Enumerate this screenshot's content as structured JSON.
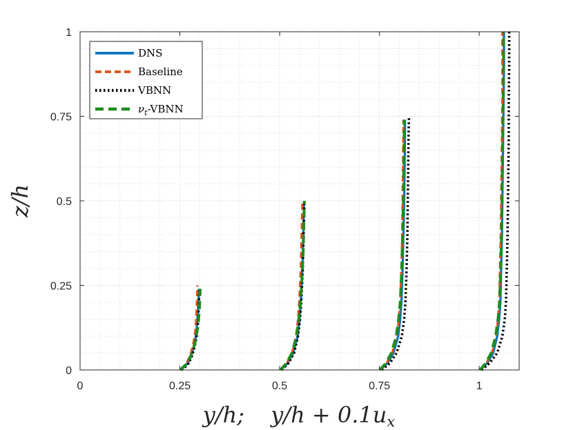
{
  "chart_data": {
    "type": "line",
    "title": "",
    "xlabel": "y/h;    y/h + 0.1u_x",
    "ylabel": "z/h",
    "xlim": [
      0,
      1.1
    ],
    "ylim": [
      0,
      1
    ],
    "grid": "on-minor",
    "legend_position": "top-left",
    "x_ticks": [
      0,
      0.25,
      0.5,
      0.75,
      1
    ],
    "x_tick_labels": [
      "0",
      "0.25",
      "0.5",
      "0.75",
      "1"
    ],
    "y_ticks": [
      0,
      0.25,
      0.5,
      0.75,
      1
    ],
    "y_tick_labels": [
      "0",
      "0.25",
      "0.5",
      "0.75",
      "1"
    ],
    "profile_stations": [
      0.25,
      0.5,
      0.75,
      1.0
    ],
    "profile_heights": [
      0.25,
      0.5,
      0.75,
      1.0
    ],
    "series": [
      {
        "name": "DNS",
        "color": "#0072BD",
        "style": "solid",
        "profiles": [
          {
            "station": 0.25,
            "z": [
              0,
              0.01,
              0.02,
              0.04,
              0.06,
              0.08,
              0.1,
              0.12,
              0.15,
              0.18,
              0.21,
              0.24
            ],
            "x": [
              0.252,
              0.262,
              0.27,
              0.278,
              0.283,
              0.287,
              0.29,
              0.292,
              0.294,
              0.296,
              0.297,
              0.298
            ]
          },
          {
            "station": 0.5,
            "z": [
              0,
              0.02,
              0.05,
              0.1,
              0.15,
              0.2,
              0.25,
              0.3,
              0.35,
              0.4,
              0.45,
              0.5
            ],
            "x": [
              0.503,
              0.52,
              0.534,
              0.545,
              0.55,
              0.553,
              0.555,
              0.557,
              0.558,
              0.559,
              0.56,
              0.561
            ]
          },
          {
            "station": 0.75,
            "z": [
              0,
              0.02,
              0.05,
              0.1,
              0.15,
              0.2,
              0.3,
              0.4,
              0.5,
              0.6,
              0.7,
              0.74
            ],
            "x": [
              0.752,
              0.77,
              0.785,
              0.797,
              0.802,
              0.805,
              0.808,
              0.81,
              0.812,
              0.813,
              0.814,
              0.814
            ]
          },
          {
            "station": 1.0,
            "z": [
              0,
              0.02,
              0.05,
              0.1,
              0.15,
              0.2,
              0.3,
              0.4,
              0.5,
              0.6,
              0.7,
              0.8,
              0.9,
              1.0
            ],
            "x": [
              1.003,
              1.02,
              1.035,
              1.045,
              1.05,
              1.053,
              1.055,
              1.057,
              1.058,
              1.059,
              1.06,
              1.061,
              1.062,
              1.062
            ]
          }
        ]
      },
      {
        "name": "Baseline",
        "color": "#D95319",
        "style": "dashed",
        "profiles": [
          {
            "station": 0.25,
            "z": [
              0,
              0.01,
              0.02,
              0.04,
              0.06,
              0.08,
              0.1,
              0.12,
              0.15,
              0.18,
              0.21,
              0.25
            ],
            "x": [
              0.252,
              0.26,
              0.267,
              0.275,
              0.28,
              0.284,
              0.287,
              0.289,
              0.291,
              0.292,
              0.293,
              0.294
            ]
          },
          {
            "station": 0.5,
            "z": [
              0,
              0.02,
              0.05,
              0.1,
              0.15,
              0.2,
              0.25,
              0.3,
              0.35,
              0.4,
              0.45,
              0.5
            ],
            "x": [
              0.503,
              0.518,
              0.531,
              0.541,
              0.546,
              0.549,
              0.551,
              0.553,
              0.554,
              0.555,
              0.556,
              0.557
            ]
          },
          {
            "station": 0.75,
            "z": [
              0,
              0.02,
              0.05,
              0.1,
              0.15,
              0.2,
              0.3,
              0.4,
              0.5,
              0.6,
              0.7,
              0.74
            ],
            "x": [
              0.752,
              0.768,
              0.782,
              0.793,
              0.799,
              0.802,
              0.805,
              0.807,
              0.808,
              0.809,
              0.81,
              0.81
            ]
          },
          {
            "station": 1.0,
            "z": [
              0,
              0.02,
              0.05,
              0.1,
              0.15,
              0.2,
              0.3,
              0.4,
              0.5,
              0.6,
              0.7,
              0.8,
              0.9,
              1.0
            ],
            "x": [
              1.003,
              1.018,
              1.032,
              1.042,
              1.047,
              1.05,
              1.052,
              1.054,
              1.055,
              1.056,
              1.057,
              1.058,
              1.058,
              1.058
            ]
          }
        ]
      },
      {
        "name": "VBNN",
        "color": "#000000",
        "style": "dotted",
        "profiles": [
          {
            "station": 0.25,
            "z": [
              0,
              0.01,
              0.02,
              0.04,
              0.06,
              0.08,
              0.1,
              0.12,
              0.15,
              0.18,
              0.21,
              0.24
            ],
            "x": [
              0.254,
              0.264,
              0.272,
              0.28,
              0.285,
              0.289,
              0.292,
              0.294,
              0.296,
              0.297,
              0.298,
              0.299
            ]
          },
          {
            "station": 0.5,
            "z": [
              0,
              0.02,
              0.05,
              0.1,
              0.15,
              0.2,
              0.25,
              0.3,
              0.35,
              0.4,
              0.45,
              0.5
            ],
            "x": [
              0.505,
              0.522,
              0.536,
              0.546,
              0.551,
              0.554,
              0.556,
              0.558,
              0.559,
              0.56,
              0.561,
              0.562
            ]
          },
          {
            "station": 0.75,
            "z": [
              0,
              0.02,
              0.05,
              0.1,
              0.15,
              0.2,
              0.3,
              0.4,
              0.5,
              0.6,
              0.7,
              0.75
            ],
            "x": [
              0.756,
              0.776,
              0.793,
              0.806,
              0.812,
              0.815,
              0.818,
              0.82,
              0.821,
              0.822,
              0.823,
              0.824
            ]
          },
          {
            "station": 1.0,
            "z": [
              0,
              0.02,
              0.05,
              0.1,
              0.15,
              0.2,
              0.3,
              0.4,
              0.5,
              0.6,
              0.7,
              0.8,
              0.9,
              1.0
            ],
            "x": [
              1.006,
              1.026,
              1.045,
              1.058,
              1.064,
              1.067,
              1.069,
              1.071,
              1.072,
              1.073,
              1.074,
              1.074,
              1.075,
              1.075
            ]
          }
        ]
      },
      {
        "name": "ν_t-VBNN",
        "color": "#1E8C1E",
        "style": "dashed",
        "profiles": [
          {
            "station": 0.25,
            "z": [
              0,
              0.01,
              0.02,
              0.04,
              0.06,
              0.08,
              0.1,
              0.12,
              0.15,
              0.18,
              0.21,
              0.24
            ],
            "x": [
              0.251,
              0.26,
              0.268,
              0.277,
              0.283,
              0.288,
              0.291,
              0.294,
              0.297,
              0.299,
              0.3,
              0.301
            ]
          },
          {
            "station": 0.5,
            "z": [
              0,
              0.02,
              0.05,
              0.1,
              0.15,
              0.2,
              0.25,
              0.3,
              0.35,
              0.4,
              0.45,
              0.5
            ],
            "x": [
              0.502,
              0.517,
              0.531,
              0.542,
              0.548,
              0.552,
              0.555,
              0.557,
              0.559,
              0.56,
              0.561,
              0.562
            ]
          },
          {
            "station": 0.75,
            "z": [
              0,
              0.02,
              0.05,
              0.1,
              0.15,
              0.2,
              0.3,
              0.4,
              0.5,
              0.6,
              0.7,
              0.74
            ],
            "x": [
              0.751,
              0.766,
              0.78,
              0.792,
              0.798,
              0.802,
              0.806,
              0.808,
              0.81,
              0.811,
              0.812,
              0.812
            ]
          },
          {
            "station": 1.0,
            "z": [
              0,
              0.02,
              0.05,
              0.1,
              0.15,
              0.2,
              0.3,
              0.4,
              0.5,
              0.6,
              0.7,
              0.8,
              0.9,
              1.0
            ],
            "x": [
              1.002,
              1.016,
              1.03,
              1.041,
              1.047,
              1.051,
              1.054,
              1.056,
              1.057,
              1.058,
              1.059,
              1.06,
              1.061,
              1.061
            ]
          }
        ]
      }
    ]
  }
}
